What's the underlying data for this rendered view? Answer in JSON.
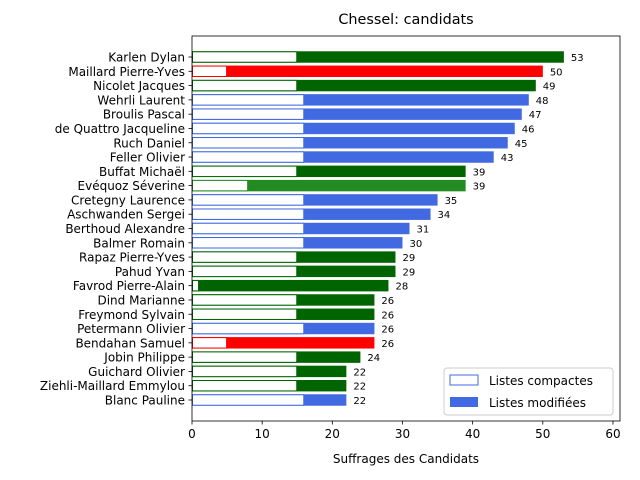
{
  "chart_data": {
    "type": "bar",
    "orientation": "horizontal",
    "title": "Chessel: candidats",
    "xlabel": "Suffrages des Candidats",
    "ylabel": "",
    "xlim": [
      0,
      61
    ],
    "xticks": [
      0,
      10,
      20,
      30,
      40,
      50,
      60
    ],
    "grid": false,
    "legend": {
      "placement": "bottom-right",
      "entries": [
        {
          "label": "Listes compactes",
          "style": "outline",
          "color": "#4169e1"
        },
        {
          "label": "Listes modifiées",
          "style": "filled",
          "color": "#4169e1"
        }
      ]
    },
    "candidates": [
      {
        "name": "Karlen Dylan",
        "total": 53,
        "compactes": 15,
        "color": "#006400"
      },
      {
        "name": "Maillard Pierre-Yves",
        "total": 50,
        "compactes": 5,
        "color": "#ff0000"
      },
      {
        "name": "Nicolet Jacques",
        "total": 49,
        "compactes": 15,
        "color": "#006400"
      },
      {
        "name": "Wehrli Laurent",
        "total": 48,
        "compactes": 16,
        "color": "#4169e1"
      },
      {
        "name": "Broulis Pascal",
        "total": 47,
        "compactes": 16,
        "color": "#4169e1"
      },
      {
        "name": "de Quattro Jacqueline",
        "total": 46,
        "compactes": 16,
        "color": "#4169e1"
      },
      {
        "name": "Ruch Daniel",
        "total": 45,
        "compactes": 16,
        "color": "#4169e1"
      },
      {
        "name": "Feller Olivier",
        "total": 43,
        "compactes": 16,
        "color": "#4169e1"
      },
      {
        "name": "Buffat Michaël",
        "total": 39,
        "compactes": 15,
        "color": "#006400"
      },
      {
        "name": "Evéquoz Séverine",
        "total": 39,
        "compactes": 8,
        "color": "#228b22"
      },
      {
        "name": "Cretegny Laurence",
        "total": 35,
        "compactes": 16,
        "color": "#4169e1"
      },
      {
        "name": "Aschwanden Sergei",
        "total": 34,
        "compactes": 16,
        "color": "#4169e1"
      },
      {
        "name": "Berthoud Alexandre",
        "total": 31,
        "compactes": 16,
        "color": "#4169e1"
      },
      {
        "name": "Balmer Romain",
        "total": 30,
        "compactes": 16,
        "color": "#4169e1"
      },
      {
        "name": "Rapaz Pierre-Yves",
        "total": 29,
        "compactes": 15,
        "color": "#006400"
      },
      {
        "name": "Pahud Yvan",
        "total": 29,
        "compactes": 15,
        "color": "#006400"
      },
      {
        "name": "Favrod Pierre-Alain",
        "total": 28,
        "compactes": 1,
        "color": "#006400"
      },
      {
        "name": "Dind Marianne",
        "total": 26,
        "compactes": 15,
        "color": "#006400"
      },
      {
        "name": "Freymond Sylvain",
        "total": 26,
        "compactes": 15,
        "color": "#006400"
      },
      {
        "name": "Petermann Olivier",
        "total": 26,
        "compactes": 16,
        "color": "#4169e1"
      },
      {
        "name": "Bendahan Samuel",
        "total": 26,
        "compactes": 5,
        "color": "#ff0000"
      },
      {
        "name": "Jobin Philippe",
        "total": 24,
        "compactes": 15,
        "color": "#006400"
      },
      {
        "name": "Guichard Olivier",
        "total": 22,
        "compactes": 15,
        "color": "#006400"
      },
      {
        "name": "Ziehli-Maillard Emmylou",
        "total": 22,
        "compactes": 15,
        "color": "#006400"
      },
      {
        "name": "Blanc Pauline",
        "total": 22,
        "compactes": 16,
        "color": "#4169e1"
      }
    ]
  }
}
